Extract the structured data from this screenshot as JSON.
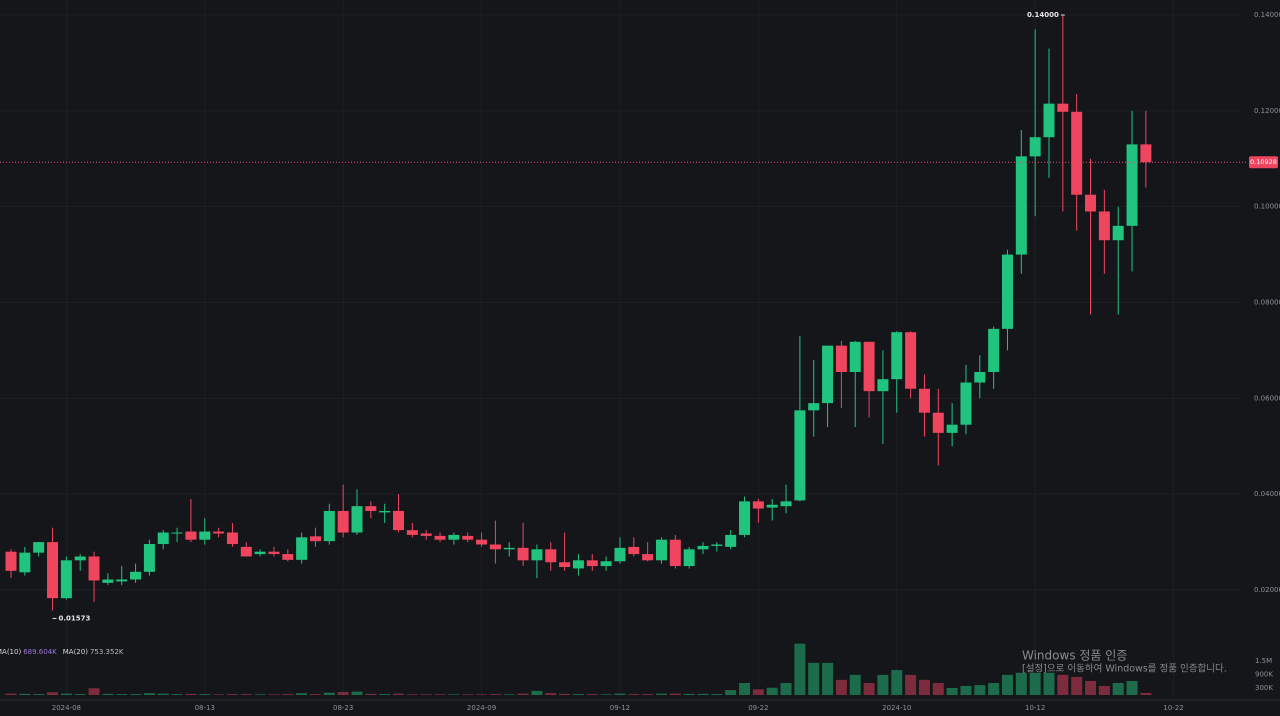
{
  "chart_data": {
    "type": "candlestick",
    "categories": [
      null,
      null,
      null,
      null,
      "2024-08",
      null,
      null,
      null,
      null,
      null,
      null,
      null,
      null,
      null,
      "08-13",
      null,
      null,
      null,
      null,
      null,
      null,
      null,
      null,
      null,
      "08-23",
      null,
      null,
      null,
      null,
      null,
      null,
      null,
      null,
      null,
      "2024-09",
      null,
      null,
      null,
      null,
      null,
      null,
      null,
      null,
      null,
      "09-12",
      null,
      null,
      null,
      null,
      null,
      null,
      null,
      null,
      null,
      "09-22",
      null,
      null,
      null,
      null,
      null,
      null,
      null,
      null,
      null,
      "2024-10",
      null,
      null,
      null,
      null,
      null,
      null,
      null,
      null,
      null,
      "10-12",
      null,
      null,
      null,
      null,
      null,
      null,
      null,
      null,
      null,
      "10-22"
    ],
    "open": [
      0.028,
      0.0237,
      0.0278,
      0.03,
      0.0183,
      0.0262,
      0.027,
      0.0215,
      0.0218,
      0.0222,
      0.0238,
      0.0296,
      0.0318,
      0.0322,
      0.0305,
      0.0322,
      0.032,
      0.029,
      0.0275,
      0.028,
      0.0275,
      0.0263,
      0.0312,
      0.0302,
      0.0365,
      0.032,
      0.0375,
      0.0362,
      0.0365,
      0.0325,
      0.0318,
      0.0313,
      0.0305,
      0.0313,
      0.0305,
      0.0295,
      0.0285,
      0.0288,
      0.0262,
      0.0285,
      0.0258,
      0.0245,
      0.0262,
      0.025,
      0.026,
      0.029,
      0.0275,
      0.0262,
      0.0305,
      0.025,
      0.0285,
      0.0292,
      0.029,
      0.0315,
      0.0385,
      0.0372,
      0.0375,
      0.0387,
      0.0575,
      0.059,
      0.071,
      0.0655,
      0.0718,
      0.0615,
      0.064,
      0.0738,
      0.062,
      0.057,
      0.0528,
      0.0545,
      0.0633,
      0.0655,
      0.0745,
      0.09,
      0.1105,
      0.1145,
      0.1215,
      0.1198,
      0.1025,
      0.099,
      0.093,
      0.096,
      0.113,
      null,
      null
    ],
    "high": [
      0.0285,
      0.029,
      0.03,
      0.033,
      0.027,
      0.0275,
      0.028,
      0.0235,
      0.025,
      0.0255,
      0.0305,
      0.0325,
      0.033,
      0.039,
      0.035,
      0.033,
      0.034,
      0.03,
      0.0285,
      0.029,
      0.0285,
      0.032,
      0.033,
      0.038,
      0.042,
      0.041,
      0.0385,
      0.038,
      0.04,
      0.034,
      0.0325,
      0.032,
      0.032,
      0.032,
      0.032,
      0.0345,
      0.03,
      0.034,
      0.0295,
      0.03,
      0.032,
      0.0275,
      0.0275,
      0.027,
      0.031,
      0.031,
      0.03,
      0.031,
      0.0315,
      0.029,
      0.03,
      0.03,
      0.0325,
      0.0395,
      0.039,
      0.039,
      0.042,
      0.073,
      0.068,
      0.07,
      0.072,
      0.072,
      0.0718,
      0.07,
      0.074,
      0.074,
      0.065,
      0.062,
      0.059,
      0.067,
      0.069,
      0.075,
      0.091,
      0.116,
      0.137,
      0.133,
      0.14,
      0.1235,
      0.11,
      0.1035,
      0.1,
      0.12,
      0.12,
      null,
      null
    ],
    "low": [
      0.0225,
      0.023,
      0.027,
      0.01573,
      0.018,
      0.024,
      0.0175,
      0.021,
      0.021,
      0.0215,
      0.023,
      0.0285,
      0.03,
      0.03,
      0.0295,
      0.031,
      0.029,
      0.0275,
      0.027,
      0.027,
      0.026,
      0.0255,
      0.029,
      0.0295,
      0.031,
      0.0315,
      0.035,
      0.034,
      0.032,
      0.031,
      0.0305,
      0.03,
      0.0295,
      0.03,
      0.029,
      0.0255,
      0.027,
      0.025,
      0.0225,
      0.024,
      0.024,
      0.023,
      0.024,
      0.024,
      0.0255,
      0.027,
      0.026,
      0.0255,
      0.0245,
      0.0245,
      0.0275,
      0.028,
      0.0285,
      0.031,
      0.034,
      0.0345,
      0.036,
      0.0385,
      0.052,
      0.054,
      0.058,
      0.054,
      0.056,
      0.0505,
      0.057,
      0.06,
      0.052,
      0.046,
      0.05,
      0.0525,
      0.06,
      0.062,
      0.07,
      0.086,
      0.098,
      0.106,
      0.099,
      0.095,
      0.0775,
      0.086,
      0.0775,
      0.0865,
      0.104,
      null,
      null
    ],
    "close": [
      0.024,
      0.0278,
      0.03,
      0.0183,
      0.0262,
      0.027,
      0.022,
      0.0222,
      0.0222,
      0.0238,
      0.0296,
      0.032,
      0.032,
      0.0305,
      0.0322,
      0.0318,
      0.0296,
      0.027,
      0.028,
      0.0275,
      0.0263,
      0.031,
      0.0302,
      0.0365,
      0.032,
      0.0375,
      0.0365,
      0.0365,
      0.0325,
      0.0315,
      0.0313,
      0.0305,
      0.0315,
      0.0305,
      0.0295,
      0.0285,
      0.0288,
      0.0262,
      0.0285,
      0.0258,
      0.0248,
      0.0262,
      0.025,
      0.026,
      0.0288,
      0.0275,
      0.0262,
      0.0305,
      0.025,
      0.0285,
      0.0292,
      0.0295,
      0.0315,
      0.0385,
      0.037,
      0.0378,
      0.0385,
      0.0575,
      0.059,
      0.071,
      0.0655,
      0.0718,
      0.0615,
      0.064,
      0.0738,
      0.062,
      0.057,
      0.0528,
      0.0545,
      0.0633,
      0.0655,
      0.0745,
      0.09,
      0.1105,
      0.1145,
      0.1215,
      0.1198,
      0.1025,
      0.099,
      0.093,
      0.096,
      0.113,
      0.10928,
      null,
      null
    ],
    "volume": [
      60000,
      50000,
      40000,
      120000,
      60000,
      40000,
      300000,
      50000,
      40000,
      40000,
      80000,
      60000,
      40000,
      50000,
      40000,
      30000,
      40000,
      40000,
      30000,
      30000,
      40000,
      80000,
      40000,
      100000,
      130000,
      150000,
      50000,
      40000,
      60000,
      30000,
      30000,
      30000,
      30000,
      30000,
      30000,
      40000,
      30000,
      60000,
      180000,
      80000,
      50000,
      40000,
      40000,
      30000,
      60000,
      40000,
      40000,
      60000,
      60000,
      50000,
      50000,
      40000,
      220000,
      530000,
      250000,
      320000,
      530000,
      2270000,
      1420000,
      1420000,
      670000,
      890000,
      530000,
      890000,
      1100000,
      890000,
      670000,
      530000,
      310000,
      400000,
      440000,
      530000,
      890000,
      980000,
      980000,
      980000,
      890000,
      800000,
      620000,
      400000,
      530000,
      620000,
      90000,
      null,
      null
    ],
    "ylim": [
      0.00957,
      0.14313
    ],
    "yticks": [
      {
        "value": 0.02,
        "label": "0.02000"
      },
      {
        "value": 0.04,
        "label": "0.04000"
      },
      {
        "value": 0.06,
        "label": "0.06000"
      },
      {
        "value": 0.08,
        "label": "0.08000"
      },
      {
        "value": 0.1,
        "label": "0.10000"
      },
      {
        "value": 0.12,
        "label": "0.12000"
      },
      {
        "value": 0.14,
        "label": "0.14000"
      }
    ],
    "volume_ylim": [
      0,
      2430000
    ],
    "volume_yticks": [
      {
        "value": 300000,
        "label": "300K"
      },
      {
        "value": 900000,
        "label": "900K"
      },
      {
        "value": 1500000,
        "label": "1.5M"
      }
    ],
    "last_price": 0.10928,
    "high_label": {
      "value": 0.14,
      "label": "0.14000"
    },
    "low_label": {
      "value": 0.01573,
      "label": "0.01573"
    },
    "volume_legend": [
      {
        "name": "MA(10)",
        "value": "689.604K",
        "color": "#9b77e0"
      },
      {
        "name": "MA(20)",
        "value": "753.352K",
        "color": "#b8b8b8"
      }
    ],
    "up_color": "#20c47f",
    "down_color": "#f0455f",
    "volume_up_color": "#1c6b4b",
    "volume_down_color": "#7c2c3c",
    "grid": true
  },
  "overlay": {
    "title": "Windows 정품 인증",
    "text": "[설정]으로 이동하여 Windows를 정품 인증합니다."
  }
}
